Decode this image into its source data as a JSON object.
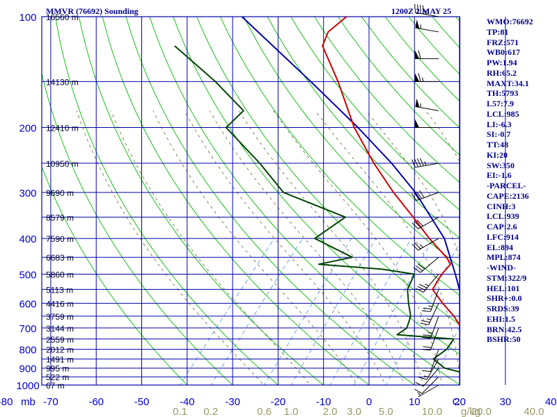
{
  "header": {
    "title": "MMVR (76692) Sounding",
    "time": "1200Z  2 MAY 25"
  },
  "indices": [
    "WMO:76692",
    "TP:81",
    "FRZ:571",
    "WB0:617",
    "PW:1.94",
    "RH:65.2",
    "MAXT:34.1",
    "TH:5793",
    "L57:7.9",
    "LCL:985",
    "LI:-6.3",
    "SI:-0.7",
    "TT:48",
    "KI:20",
    "SW:350",
    "EI:-1.6",
    "-PARCEL-",
    "CAPE:2136",
    "CINH:3",
    "LCL:939",
    "CAP:2.6",
    "LFC:914",
    "EL:894",
    "MPL:874",
    "-WIND-",
    "STM:322/9",
    "HEL:101",
    "SHR+:0.0",
    "SRDS:39",
    "EHI:1.5",
    "BRN:42.5",
    "BSHR:50"
  ],
  "colors": {
    "frame": "#0000aa",
    "pressure_label": "#0000cd",
    "temperature_profile": "#cc0000",
    "dewpoint_profile": "#004400",
    "parcel_path": "#0000aa",
    "dry_adiabats": "#00bb00",
    "moist_adiabats": "#666633",
    "mixing_ratio": "#4488ee",
    "mixing_ratio_label": "#999966",
    "wind_barbs": "#000000"
  },
  "chart_data": {
    "type": "skew-t log-p sounding",
    "y_axis": {
      "label": "mb",
      "scale": "log",
      "ticks": [
        100,
        200,
        300,
        400,
        500,
        600,
        700,
        800,
        900,
        1000
      ],
      "range": [
        1000,
        100
      ]
    },
    "x_axis": {
      "ticks": [
        -80,
        -70,
        -60,
        -50,
        -40,
        -30,
        -20,
        -10,
        0,
        10,
        20,
        30,
        40
      ],
      "unit_label": "C"
    },
    "mixing_ratio_ticks": [
      {
        "label": "0.1",
        "value": 0.1
      },
      {
        "label": "0.2",
        "value": 0.2
      },
      {
        "label": "0.6",
        "value": 0.6
      },
      {
        "label": "1.0",
        "value": 1.0
      },
      {
        "label": "2.0",
        "value": 2.0
      },
      {
        "label": "3.0",
        "value": 3.0
      },
      {
        "label": "5.0",
        "value": 5.0
      },
      {
        "label": "10.0",
        "value": 10.0
      },
      {
        "label": "20.0",
        "value": 20.0
      },
      {
        "label": "40.0",
        "value": 40.0
      }
    ],
    "mixing_ratio_unit": "g/kg",
    "heights": [
      {
        "p": 100,
        "label": "16560 m"
      },
      {
        "p": 150,
        "label": "14130 m"
      },
      {
        "p": 200,
        "label": "12410 m"
      },
      {
        "p": 250,
        "label": "10950 m"
      },
      {
        "p": 300,
        "label": "9690 m"
      },
      {
        "p": 350,
        "label": "8579 m"
      },
      {
        "p": 400,
        "label": "7590 m"
      },
      {
        "p": 450,
        "label": "6683 m"
      },
      {
        "p": 500,
        "label": "5860 m"
      },
      {
        "p": 550,
        "label": "5113 m"
      },
      {
        "p": 600,
        "label": "4416 m"
      },
      {
        "p": 650,
        "label": "3759 m"
      },
      {
        "p": 700,
        "label": "3144 m"
      },
      {
        "p": 750,
        "label": "2559 m"
      },
      {
        "p": 800,
        "label": "2012 m"
      },
      {
        "p": 850,
        "label": "1491 m"
      },
      {
        "p": 900,
        "label": "995 m"
      },
      {
        "p": 950,
        "label": "522 m"
      },
      {
        "p": 1000,
        "label": "67 m"
      }
    ],
    "temperature": [
      {
        "p": 1006,
        "t": 26.4
      },
      {
        "p": 1000,
        "t": 25.0
      },
      {
        "p": 950,
        "t": 22.0
      },
      {
        "p": 925,
        "t": 20.5
      },
      {
        "p": 900,
        "t": 18.3
      },
      {
        "p": 850,
        "t": 15.0
      },
      {
        "p": 800,
        "t": 13.0
      },
      {
        "p": 750,
        "t": 12.5
      },
      {
        "p": 720,
        "t": 11.0
      },
      {
        "p": 700,
        "t": 9.0
      },
      {
        "p": 650,
        "t": 5.0
      },
      {
        "p": 600,
        "t": 0.0
      },
      {
        "p": 550,
        "t": -5.0
      },
      {
        "p": 500,
        "t": -6.0
      },
      {
        "p": 470,
        "t": -6.0
      },
      {
        "p": 450,
        "t": -8.3
      },
      {
        "p": 400,
        "t": -15.8
      },
      {
        "p": 350,
        "t": -23.6
      },
      {
        "p": 300,
        "t": -32.8
      },
      {
        "p": 250,
        "t": -42.9
      },
      {
        "p": 200,
        "t": -54.3
      },
      {
        "p": 150,
        "t": -67.0
      },
      {
        "p": 120,
        "t": -77.5
      },
      {
        "p": 110,
        "t": -79.0
      },
      {
        "p": 100,
        "t": -78.0
      }
    ],
    "dewpoint": [
      {
        "p": 1006,
        "td": 24.5
      },
      {
        "p": 1000,
        "td": 23.5
      },
      {
        "p": 950,
        "td": 20.0
      },
      {
        "p": 925,
        "td": 18.0
      },
      {
        "p": 900,
        "td": 13.3
      },
      {
        "p": 850,
        "td": 9.0
      },
      {
        "p": 800,
        "td": 10.0
      },
      {
        "p": 750,
        "td": 9.5
      },
      {
        "p": 730,
        "td": -3.8
      },
      {
        "p": 700,
        "td": -3.0
      },
      {
        "p": 650,
        "td": -4.5
      },
      {
        "p": 600,
        "td": -7.5
      },
      {
        "p": 550,
        "td": -10.5
      },
      {
        "p": 500,
        "td": -12.0
      },
      {
        "p": 485,
        "td": -20.0
      },
      {
        "p": 470,
        "td": -35.0
      },
      {
        "p": 450,
        "td": -29.0
      },
      {
        "p": 400,
        "td": -41.0
      },
      {
        "p": 350,
        "td": -38.5
      },
      {
        "p": 300,
        "td": -57.0
      },
      {
        "p": 250,
        "td": -68.0
      },
      {
        "p": 200,
        "td": -82.5
      },
      {
        "p": 180,
        "td": -82.0
      },
      {
        "p": 150,
        "td": -94.0
      },
      {
        "p": 120,
        "td": -110.0
      }
    ],
    "parcel": [
      {
        "p": 1006,
        "t": 26.4
      },
      {
        "p": 939,
        "t": 21.5
      },
      {
        "p": 850,
        "t": 18.5
      },
      {
        "p": 700,
        "t": 11.0
      },
      {
        "p": 600,
        "t": 4.5
      },
      {
        "p": 500,
        "t": -3.0
      },
      {
        "p": 400,
        "t": -12.5
      },
      {
        "p": 300,
        "t": -28.0
      },
      {
        "p": 250,
        "t": -39.0
      },
      {
        "p": 200,
        "t": -53.5
      },
      {
        "p": 150,
        "t": -73.0
      },
      {
        "p": 100,
        "t": -101.0
      }
    ],
    "winds": [
      {
        "p": 1000,
        "dir": 240,
        "spd": 5
      },
      {
        "p": 950,
        "dir": 225,
        "spd": 10
      },
      {
        "p": 900,
        "dir": 220,
        "spd": 10
      },
      {
        "p": 850,
        "dir": 210,
        "spd": 15
      },
      {
        "p": 800,
        "dir": 200,
        "spd": 10
      },
      {
        "p": 700,
        "dir": 200,
        "spd": 20
      },
      {
        "p": 650,
        "dir": 200,
        "spd": 25
      },
      {
        "p": 600,
        "dir": 205,
        "spd": 25
      },
      {
        "p": 550,
        "dir": 200,
        "spd": 25
      },
      {
        "p": 500,
        "dir": 220,
        "spd": 35
      },
      {
        "p": 450,
        "dir": 230,
        "spd": 30
      },
      {
        "p": 400,
        "dir": 240,
        "spd": 25
      },
      {
        "p": 350,
        "dir": 240,
        "spd": 30
      },
      {
        "p": 300,
        "dir": 250,
        "spd": 40
      },
      {
        "p": 250,
        "dir": 260,
        "spd": 45
      },
      {
        "p": 200,
        "dir": 270,
        "spd": 50
      },
      {
        "p": 180,
        "dir": 280,
        "spd": 55
      },
      {
        "p": 150,
        "dir": 270,
        "spd": 65
      },
      {
        "p": 130,
        "dir": 270,
        "spd": 60
      },
      {
        "p": 110,
        "dir": 280,
        "spd": 55
      },
      {
        "p": 100,
        "dir": 280,
        "spd": 45
      }
    ]
  }
}
